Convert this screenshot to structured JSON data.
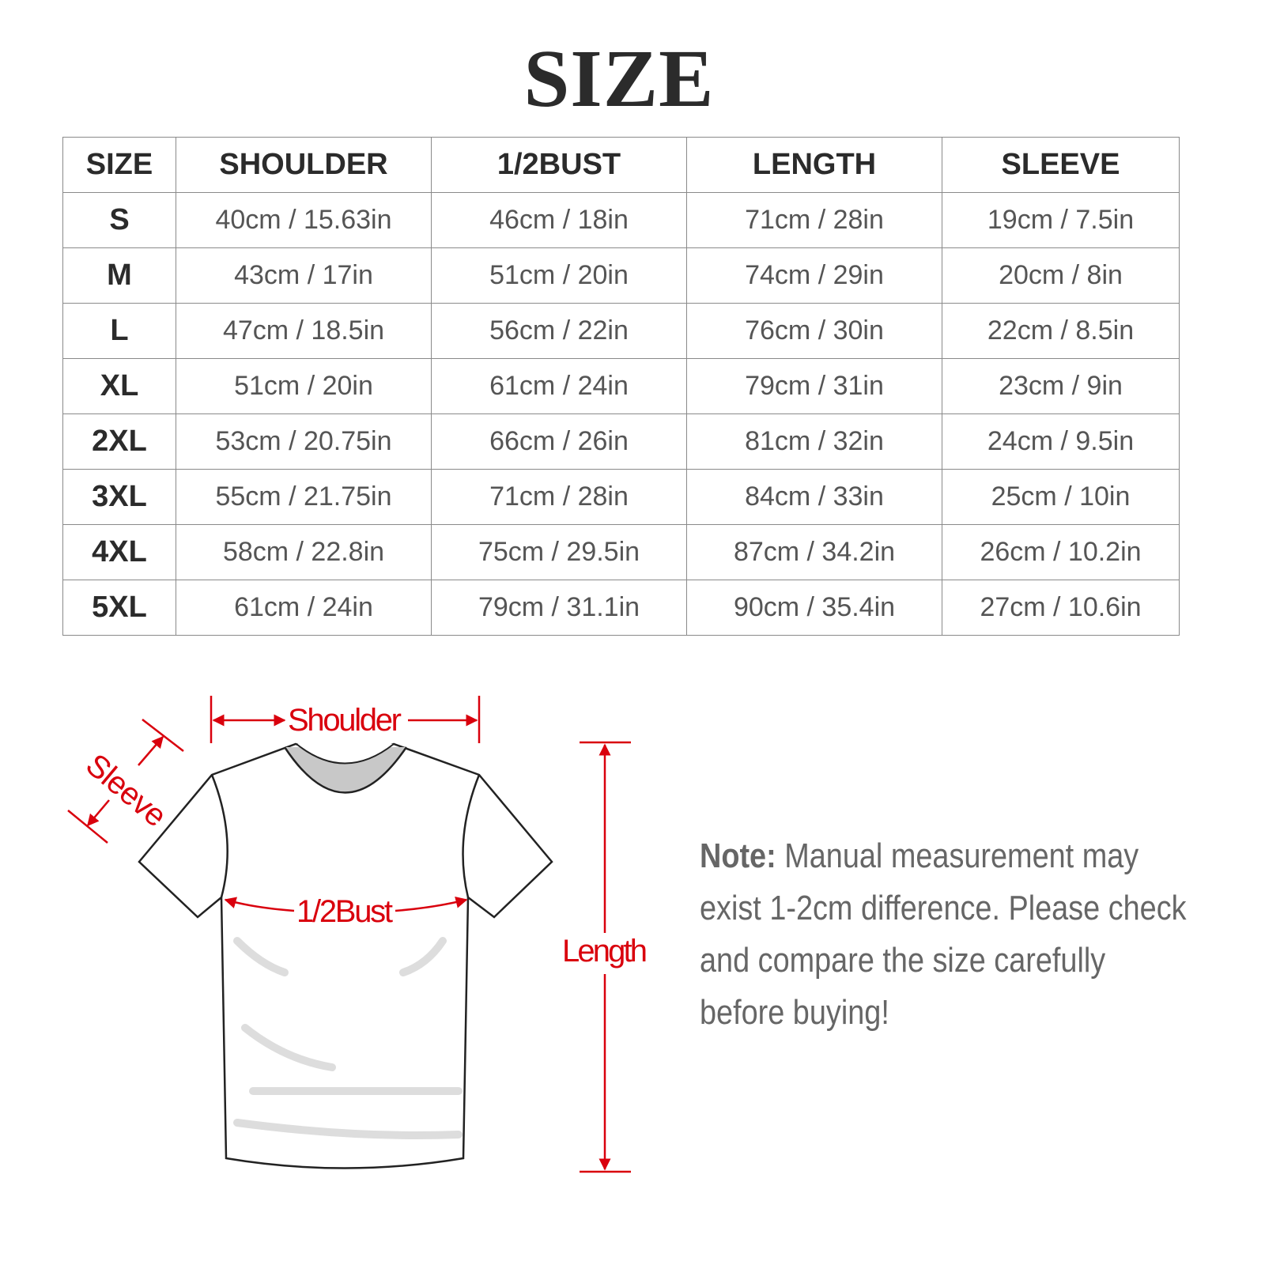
{
  "title": "SIZE",
  "table": {
    "headers": [
      "SIZE",
      "SHOULDER",
      "1/2BUST",
      "LENGTH",
      "SLEEVE"
    ],
    "rows": [
      [
        "S",
        "40cm / 15.63in",
        "46cm / 18in",
        "71cm / 28in",
        "19cm / 7.5in"
      ],
      [
        "M",
        "43cm / 17in",
        "51cm / 20in",
        "74cm / 29in",
        "20cm / 8in"
      ],
      [
        "L",
        "47cm / 18.5in",
        "56cm / 22in",
        "76cm / 30in",
        "22cm / 8.5in"
      ],
      [
        "XL",
        "51cm / 20in",
        "61cm / 24in",
        "79cm / 31in",
        "23cm / 9in"
      ],
      [
        "2XL",
        "53cm / 20.75in",
        "66cm / 26in",
        "81cm / 32in",
        "24cm / 9.5in"
      ],
      [
        "3XL",
        "55cm / 21.75in",
        "71cm / 28in",
        "84cm / 33in",
        "25cm / 10in"
      ],
      [
        "4XL",
        "58cm / 22.8in",
        "75cm / 29.5in",
        "87cm / 34.2in",
        "26cm / 10.2in"
      ],
      [
        "5XL",
        "61cm / 24in",
        "79cm / 31.1in",
        "90cm / 35.4in",
        "27cm / 10.6in"
      ]
    ]
  },
  "diagram": {
    "shoulder": "Shoulder",
    "sleeve": "Sleeve",
    "bust": "1/2Bust",
    "length": "Length",
    "accent_color": "#d9000d"
  },
  "note": {
    "label": "Note:",
    "text": "Manual measurement may exist 1-2cm difference. Please check and compare the size carefully before buying!"
  }
}
